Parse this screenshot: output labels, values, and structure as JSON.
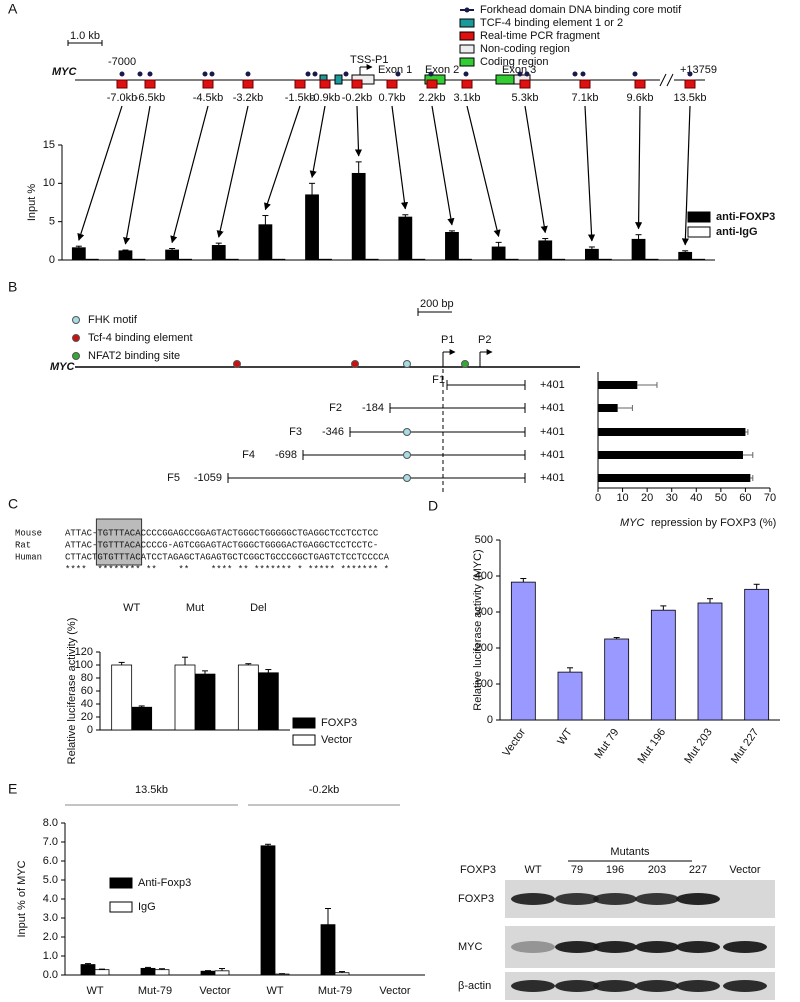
{
  "panel_labels": [
    "A",
    "B",
    "C",
    "D",
    "E"
  ],
  "gene_map": {
    "scale": "1.0 kb",
    "gene": "MYC",
    "start": "-7000",
    "end": "+13759",
    "tss": "TSS-P1",
    "exons": [
      "Exon 1",
      "Exon 2",
      "Exon 3"
    ],
    "legend": [
      "Forkhead domain DNA binding core motif",
      "TCF-4 binding element 1 or 2",
      "Real-time PCR fragment",
      "Non-coding region",
      "Coding region"
    ]
  },
  "promoter_map": {
    "legend": [
      "FHK motif",
      "Tcf-4 binding element",
      "NFAT2 binding site"
    ],
    "scale": "200 bp",
    "gene": "MYC",
    "promoters": [
      "P1",
      "P2"
    ],
    "constructs": [
      {
        "name": "F1",
        "end": "+401"
      },
      {
        "name": "F2",
        "start": "-184",
        "end": "+401"
      },
      {
        "name": "F3",
        "start": "-346",
        "end": "+401"
      },
      {
        "name": "F4",
        "start": "-698",
        "end": "+401"
      },
      {
        "name": "F5",
        "start": "-1059",
        "end": "+401"
      }
    ]
  },
  "alignment": {
    "species": [
      "Mouse",
      "Rat",
      "Human"
    ],
    "sequences": [
      "ATTAC-TGTTTACACCCCGGAGCCGGAGTACTGGGCTGGGGGCTGAGGCTCCTCCTCC",
      "ATTAC-TGTTTACACCCCG-AGTCGGAGTACTGGGCTGGGGACTGAGGCTCCTCCTC-",
      "CTTACTGTGTTTACATCCTAGAGCTAGAGTGCTCGGCTGCCCGGCTGAGTCTCCTCCCCA"
    ],
    "conservation": "****  ******** **    **    **** ** ******* * ***** ******* *"
  },
  "western_blot": {
    "header": "FOXP3",
    "mutants_label": "Mutants",
    "lanes": [
      "WT",
      "79",
      "196",
      "203",
      "227",
      "Vector"
    ],
    "rows": [
      "FOXP3",
      "MYC",
      "β-actin"
    ]
  },
  "chart_data": [
    {
      "type": "bar",
      "y_label": "Input %",
      "categories": [
        "-7.0kb",
        "-6.5kb",
        "-4.5kb",
        "-3.2kb",
        "-1.5kb",
        "-0.9kb",
        "-0.2kb",
        "0.7kb",
        "2.2kb",
        "3.1kb",
        "5.3kb",
        "7.1kb",
        "9.6kb",
        "13.5kb"
      ],
      "series": [
        {
          "name": "anti-FOXP3",
          "color": "#000000",
          "values": [
            1.6,
            1.2,
            1.3,
            1.9,
            4.6,
            8.5,
            11.3,
            5.6,
            3.6,
            1.7,
            2.5,
            1.4,
            2.7,
            1.0
          ],
          "errors": [
            0.2,
            0.1,
            0.2,
            0.3,
            1.2,
            1.5,
            1.5,
            0.3,
            0.2,
            0.6,
            0.3,
            0.3,
            0.6,
            0.2
          ]
        },
        {
          "name": "anti-IgG",
          "color": "#ffffff",
          "values": [
            0.1,
            0.1,
            0.1,
            0.1,
            0.1,
            0.1,
            0.1,
            0.1,
            0.1,
            0.1,
            0.1,
            0.1,
            0.1,
            0.1
          ]
        }
      ],
      "ylim": [
        0,
        15
      ],
      "yticks": [
        0,
        5,
        10,
        15
      ]
    },
    {
      "type": "hbar",
      "x_label_gene": "MYC",
      "x_label": "repression by FOXP3 (%)",
      "values": [
        16,
        8,
        60,
        59,
        62
      ],
      "errors": [
        8,
        6,
        1,
        4,
        1
      ],
      "color": "#000000",
      "xlim": [
        0,
        70
      ],
      "xticks": [
        0,
        10,
        20,
        30,
        40,
        50,
        60,
        70
      ]
    },
    {
      "type": "bar",
      "y_label": "Relative luciferase activity (%)",
      "categories": [
        "WT",
        "Mut",
        "Del"
      ],
      "series": [
        {
          "name": "FOXP3",
          "color": "#000000",
          "values": [
            35,
            86,
            88
          ],
          "errors": [
            2,
            5,
            5
          ]
        },
        {
          "name": "Vector",
          "color": "#ffffff",
          "values": [
            100,
            100,
            100
          ],
          "errors": [
            4,
            12,
            2
          ]
        }
      ],
      "ylim": [
        0,
        120
      ],
      "yticks": [
        0,
        20,
        40,
        60,
        80,
        100,
        120
      ]
    },
    {
      "type": "bar",
      "y_label": "Relative luciferase activity (MYC)",
      "categories": [
        "Vector",
        "WT",
        "Mut 79",
        "Mut 196",
        "Mut 203",
        "Mut 227"
      ],
      "values": [
        383,
        133,
        225,
        305,
        325,
        363
      ],
      "errors": [
        10,
        12,
        4,
        12,
        12,
        14
      ],
      "color": "#9999ff",
      "ylim": [
        0,
        500
      ],
      "yticks": [
        0,
        100,
        200,
        300,
        400,
        500
      ]
    },
    {
      "type": "bar",
      "y_label": "Input % of MYC",
      "group_labels": [
        "13.5kb",
        "-0.2kb"
      ],
      "categories": [
        "WT",
        "Mut-79",
        "Vector",
        "WT",
        "Mut-79",
        "Vector"
      ],
      "series": [
        {
          "name": "Anti-Foxp3",
          "color": "#000000",
          "values": [
            0.55,
            0.35,
            0.2,
            6.8,
            2.65,
            0
          ],
          "errors": [
            0.05,
            0.05,
            0.03,
            0.08,
            0.85,
            0
          ]
        },
        {
          "name": "IgG",
          "color": "#ffffff",
          "values": [
            0.28,
            0.28,
            0.22,
            0.05,
            0.12,
            0
          ],
          "errors": [
            0.03,
            0.05,
            0.12,
            0.02,
            0.06,
            0
          ]
        }
      ],
      "ylim": [
        0,
        8
      ],
      "yticks": [
        {
          "value": 0,
          "label": "0.0"
        },
        {
          "value": 1,
          "label": "1.0"
        },
        {
          "value": 2,
          "label": "2.0"
        },
        {
          "value": 3,
          "label": "3.0"
        },
        {
          "value": 4,
          "label": "4.0"
        },
        {
          "value": 5,
          "label": "5.0"
        },
        {
          "value": 6,
          "label": "6.0"
        },
        {
          "value": 7,
          "label": "7.0"
        },
        {
          "value": 8,
          "label": "8.0"
        }
      ]
    }
  ]
}
